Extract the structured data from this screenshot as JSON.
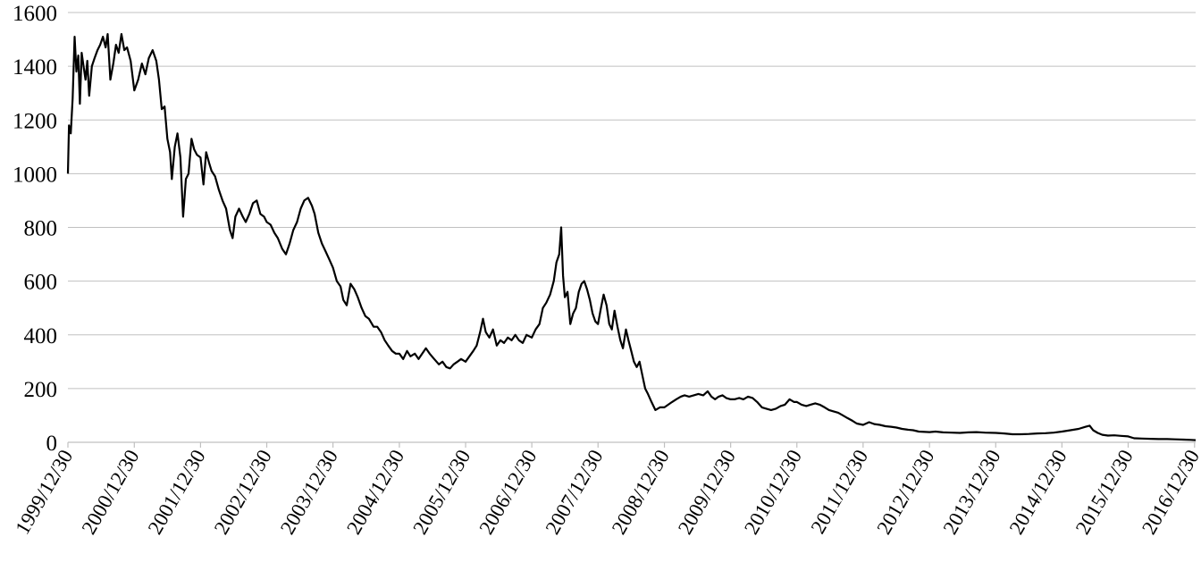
{
  "chart_data": {
    "type": "line",
    "title": "",
    "xlabel": "",
    "ylabel": "",
    "ylim": [
      0,
      1600
    ],
    "yticks": [
      0,
      200,
      400,
      600,
      800,
      1000,
      1200,
      1400,
      1600
    ],
    "grid": true,
    "legend": "none",
    "xticks": [
      "1999/12/30",
      "2000/12/30",
      "2001/12/30",
      "2002/12/30",
      "2003/12/30",
      "2004/12/30",
      "2005/12/30",
      "2006/12/30",
      "2007/12/30",
      "2008/12/30",
      "2009/12/30",
      "2010/12/30",
      "2011/12/30",
      "2012/12/30",
      "2013/12/30",
      "2014/12/30",
      "2015/12/30",
      "2016/12/30"
    ],
    "xlim": [
      "1999-12-30",
      "2017-01-05"
    ],
    "series": [
      {
        "color": "#000000",
        "points": [
          [
            "1999-12-30",
            1000
          ],
          [
            "2000-01-05",
            1180
          ],
          [
            "2000-01-15",
            1150
          ],
          [
            "2000-01-25",
            1280
          ],
          [
            "2000-02-05",
            1510
          ],
          [
            "2000-02-15",
            1380
          ],
          [
            "2000-02-25",
            1440
          ],
          [
            "2000-03-05",
            1260
          ],
          [
            "2000-03-15",
            1450
          ],
          [
            "2000-03-25",
            1400
          ],
          [
            "2000-04-05",
            1350
          ],
          [
            "2000-04-15",
            1420
          ],
          [
            "2000-04-25",
            1290
          ],
          [
            "2000-05-10",
            1400
          ],
          [
            "2000-05-25",
            1430
          ],
          [
            "2000-06-10",
            1460
          ],
          [
            "2000-06-25",
            1480
          ],
          [
            "2000-07-10",
            1510
          ],
          [
            "2000-07-25",
            1470
          ],
          [
            "2000-08-05",
            1520
          ],
          [
            "2000-08-20",
            1350
          ],
          [
            "2000-09-05",
            1410
          ],
          [
            "2000-09-20",
            1480
          ],
          [
            "2000-10-05",
            1450
          ],
          [
            "2000-10-20",
            1520
          ],
          [
            "2000-11-05",
            1460
          ],
          [
            "2000-11-20",
            1470
          ],
          [
            "2000-12-10",
            1420
          ],
          [
            "2000-12-30",
            1310
          ],
          [
            "2001-01-20",
            1350
          ],
          [
            "2001-02-10",
            1410
          ],
          [
            "2001-03-01",
            1370
          ],
          [
            "2001-03-20",
            1430
          ],
          [
            "2001-04-10",
            1460
          ],
          [
            "2001-04-30",
            1420
          ],
          [
            "2001-05-15",
            1350
          ],
          [
            "2001-05-30",
            1240
          ],
          [
            "2001-06-15",
            1250
          ],
          [
            "2001-06-30",
            1130
          ],
          [
            "2001-07-15",
            1080
          ],
          [
            "2001-07-25",
            980
          ],
          [
            "2001-08-10",
            1100
          ],
          [
            "2001-08-25",
            1150
          ],
          [
            "2001-09-10",
            1060
          ],
          [
            "2001-09-25",
            840
          ],
          [
            "2001-10-10",
            980
          ],
          [
            "2001-10-25",
            1000
          ],
          [
            "2001-11-10",
            1130
          ],
          [
            "2001-11-25",
            1090
          ],
          [
            "2001-12-10",
            1070
          ],
          [
            "2001-12-30",
            1060
          ],
          [
            "2002-01-15",
            960
          ],
          [
            "2002-01-30",
            1080
          ],
          [
            "2002-02-15",
            1040
          ],
          [
            "2002-03-01",
            1010
          ],
          [
            "2002-03-20",
            990
          ],
          [
            "2002-04-10",
            940
          ],
          [
            "2002-04-30",
            900
          ],
          [
            "2002-05-20",
            870
          ],
          [
            "2002-06-10",
            790
          ],
          [
            "2002-06-25",
            760
          ],
          [
            "2002-07-10",
            840
          ],
          [
            "2002-07-30",
            870
          ],
          [
            "2002-08-20",
            840
          ],
          [
            "2002-09-05",
            820
          ],
          [
            "2002-09-25",
            850
          ],
          [
            "2002-10-15",
            890
          ],
          [
            "2002-11-05",
            900
          ],
          [
            "2002-11-25",
            850
          ],
          [
            "2002-12-15",
            840
          ],
          [
            "2002-12-30",
            820
          ],
          [
            "2003-01-20",
            810
          ],
          [
            "2003-02-10",
            780
          ],
          [
            "2003-03-01",
            760
          ],
          [
            "2003-03-25",
            720
          ],
          [
            "2003-04-15",
            700
          ],
          [
            "2003-05-05",
            740
          ],
          [
            "2003-05-25",
            790
          ],
          [
            "2003-06-15",
            820
          ],
          [
            "2003-07-05",
            870
          ],
          [
            "2003-07-25",
            900
          ],
          [
            "2003-08-15",
            910
          ],
          [
            "2003-09-05",
            880
          ],
          [
            "2003-09-20",
            850
          ],
          [
            "2003-10-10",
            780
          ],
          [
            "2003-10-30",
            740
          ],
          [
            "2003-11-20",
            710
          ],
          [
            "2003-12-10",
            680
          ],
          [
            "2003-12-30",
            650
          ],
          [
            "2004-01-20",
            600
          ],
          [
            "2004-02-10",
            580
          ],
          [
            "2004-02-25",
            530
          ],
          [
            "2004-03-15",
            510
          ],
          [
            "2004-04-05",
            590
          ],
          [
            "2004-04-25",
            570
          ],
          [
            "2004-05-15",
            540
          ],
          [
            "2004-06-05",
            500
          ],
          [
            "2004-06-25",
            470
          ],
          [
            "2004-07-15",
            460
          ],
          [
            "2004-08-10",
            430
          ],
          [
            "2004-08-30",
            430
          ],
          [
            "2004-09-20",
            410
          ],
          [
            "2004-10-10",
            380
          ],
          [
            "2004-10-30",
            360
          ],
          [
            "2004-11-20",
            340
          ],
          [
            "2004-12-10",
            330
          ],
          [
            "2004-12-30",
            330
          ],
          [
            "2005-01-20",
            310
          ],
          [
            "2005-02-10",
            340
          ],
          [
            "2005-03-01",
            320
          ],
          [
            "2005-03-25",
            330
          ],
          [
            "2005-04-15",
            310
          ],
          [
            "2005-05-05",
            330
          ],
          [
            "2005-05-25",
            350
          ],
          [
            "2005-06-15",
            330
          ],
          [
            "2005-07-10",
            310
          ],
          [
            "2005-08-05",
            290
          ],
          [
            "2005-08-25",
            300
          ],
          [
            "2005-09-15",
            280
          ],
          [
            "2005-10-05",
            275
          ],
          [
            "2005-10-25",
            290
          ],
          [
            "2005-11-15",
            300
          ],
          [
            "2005-12-05",
            310
          ],
          [
            "2005-12-30",
            300
          ],
          [
            "2006-01-20",
            320
          ],
          [
            "2006-02-10",
            340
          ],
          [
            "2006-03-01",
            360
          ],
          [
            "2006-03-20",
            410
          ],
          [
            "2006-04-05",
            460
          ],
          [
            "2006-04-20",
            410
          ],
          [
            "2006-05-10",
            390
          ],
          [
            "2006-05-30",
            420
          ],
          [
            "2006-06-20",
            360
          ],
          [
            "2006-07-10",
            380
          ],
          [
            "2006-07-30",
            370
          ],
          [
            "2006-08-20",
            390
          ],
          [
            "2006-09-10",
            380
          ],
          [
            "2006-09-30",
            400
          ],
          [
            "2006-10-20",
            380
          ],
          [
            "2006-11-10",
            370
          ],
          [
            "2006-12-01",
            400
          ],
          [
            "2006-12-30",
            390
          ],
          [
            "2007-01-20",
            420
          ],
          [
            "2007-02-10",
            440
          ],
          [
            "2007-03-01",
            500
          ],
          [
            "2007-03-20",
            520
          ],
          [
            "2007-04-10",
            550
          ],
          [
            "2007-04-30",
            600
          ],
          [
            "2007-05-15",
            670
          ],
          [
            "2007-05-30",
            700
          ],
          [
            "2007-06-10",
            800
          ],
          [
            "2007-06-20",
            620
          ],
          [
            "2007-06-30",
            540
          ],
          [
            "2007-07-15",
            560
          ],
          [
            "2007-07-30",
            440
          ],
          [
            "2007-08-15",
            480
          ],
          [
            "2007-08-30",
            500
          ],
          [
            "2007-09-15",
            560
          ],
          [
            "2007-09-30",
            590
          ],
          [
            "2007-10-15",
            600
          ],
          [
            "2007-10-30",
            570
          ],
          [
            "2007-11-15",
            530
          ],
          [
            "2007-11-30",
            480
          ],
          [
            "2007-12-15",
            450
          ],
          [
            "2007-12-30",
            440
          ],
          [
            "2008-01-15",
            500
          ],
          [
            "2008-01-30",
            550
          ],
          [
            "2008-02-15",
            510
          ],
          [
            "2008-03-01",
            440
          ],
          [
            "2008-03-15",
            420
          ],
          [
            "2008-03-30",
            490
          ],
          [
            "2008-04-15",
            430
          ],
          [
            "2008-05-01",
            380
          ],
          [
            "2008-05-15",
            350
          ],
          [
            "2008-06-01",
            420
          ],
          [
            "2008-06-15",
            380
          ],
          [
            "2008-06-30",
            340
          ],
          [
            "2008-07-15",
            300
          ],
          [
            "2008-07-30",
            280
          ],
          [
            "2008-08-15",
            300
          ],
          [
            "2008-08-30",
            250
          ],
          [
            "2008-09-15",
            200
          ],
          [
            "2008-09-30",
            180
          ],
          [
            "2008-10-20",
            150
          ],
          [
            "2008-11-10",
            120
          ],
          [
            "2008-12-05",
            130
          ],
          [
            "2008-12-30",
            130
          ],
          [
            "2009-01-20",
            140
          ],
          [
            "2009-02-10",
            150
          ],
          [
            "2009-03-05",
            160
          ],
          [
            "2009-03-30",
            170
          ],
          [
            "2009-04-20",
            175
          ],
          [
            "2009-05-15",
            170
          ],
          [
            "2009-06-10",
            175
          ],
          [
            "2009-07-05",
            180
          ],
          [
            "2009-08-01",
            175
          ],
          [
            "2009-08-25",
            190
          ],
          [
            "2009-09-15",
            170
          ],
          [
            "2009-10-05",
            160
          ],
          [
            "2009-10-25",
            170
          ],
          [
            "2009-11-15",
            175
          ],
          [
            "2009-12-05",
            165
          ],
          [
            "2009-12-30",
            160
          ],
          [
            "2010-01-20",
            160
          ],
          [
            "2010-02-15",
            165
          ],
          [
            "2010-03-10",
            160
          ],
          [
            "2010-04-05",
            170
          ],
          [
            "2010-04-30",
            165
          ],
          [
            "2010-05-25",
            150
          ],
          [
            "2010-06-20",
            130
          ],
          [
            "2010-07-15",
            125
          ],
          [
            "2010-08-10",
            120
          ],
          [
            "2010-09-05",
            125
          ],
          [
            "2010-10-01",
            135
          ],
          [
            "2010-10-25",
            140
          ],
          [
            "2010-11-20",
            160
          ],
          [
            "2010-12-15",
            150
          ],
          [
            "2010-12-30",
            150
          ],
          [
            "2011-01-25",
            140
          ],
          [
            "2011-02-20",
            135
          ],
          [
            "2011-03-15",
            140
          ],
          [
            "2011-04-10",
            145
          ],
          [
            "2011-05-05",
            140
          ],
          [
            "2011-06-01",
            130
          ],
          [
            "2011-06-25",
            120
          ],
          [
            "2011-07-20",
            115
          ],
          [
            "2011-08-15",
            110
          ],
          [
            "2011-09-10",
            100
          ],
          [
            "2011-10-05",
            90
          ],
          [
            "2011-11-01",
            80
          ],
          [
            "2011-11-25",
            70
          ],
          [
            "2011-12-30",
            65
          ],
          [
            "2012-02-01",
            75
          ],
          [
            "2012-03-01",
            68
          ],
          [
            "2012-04-01",
            65
          ],
          [
            "2012-05-01",
            60
          ],
          [
            "2012-06-01",
            58
          ],
          [
            "2012-07-01",
            55
          ],
          [
            "2012-08-01",
            50
          ],
          [
            "2012-09-01",
            47
          ],
          [
            "2012-10-01",
            45
          ],
          [
            "2012-11-01",
            40
          ],
          [
            "2012-12-30",
            38
          ],
          [
            "2013-02-01",
            40
          ],
          [
            "2013-03-15",
            37
          ],
          [
            "2013-05-01",
            36
          ],
          [
            "2013-06-15",
            35
          ],
          [
            "2013-08-01",
            37
          ],
          [
            "2013-09-15",
            38
          ],
          [
            "2013-11-01",
            36
          ],
          [
            "2013-12-30",
            35
          ],
          [
            "2014-02-15",
            33
          ],
          [
            "2014-04-01",
            30
          ],
          [
            "2014-05-15",
            30
          ],
          [
            "2014-07-01",
            31
          ],
          [
            "2014-08-15",
            33
          ],
          [
            "2014-10-01",
            34
          ],
          [
            "2014-11-15",
            36
          ],
          [
            "2014-12-30",
            40
          ],
          [
            "2015-02-15",
            45
          ],
          [
            "2015-04-01",
            50
          ],
          [
            "2015-05-10",
            58
          ],
          [
            "2015-06-01",
            62
          ],
          [
            "2015-06-20",
            45
          ],
          [
            "2015-07-15",
            35
          ],
          [
            "2015-08-10",
            28
          ],
          [
            "2015-09-10",
            25
          ],
          [
            "2015-10-15",
            26
          ],
          [
            "2015-11-20",
            24
          ],
          [
            "2015-12-30",
            22
          ],
          [
            "2016-02-01",
            15
          ],
          [
            "2016-03-15",
            14
          ],
          [
            "2016-05-01",
            13
          ],
          [
            "2016-06-15",
            12
          ],
          [
            "2016-08-01",
            12
          ],
          [
            "2016-09-15",
            11
          ],
          [
            "2016-11-01",
            10
          ],
          [
            "2016-12-10",
            9
          ],
          [
            "2017-01-05",
            8
          ]
        ]
      }
    ]
  }
}
